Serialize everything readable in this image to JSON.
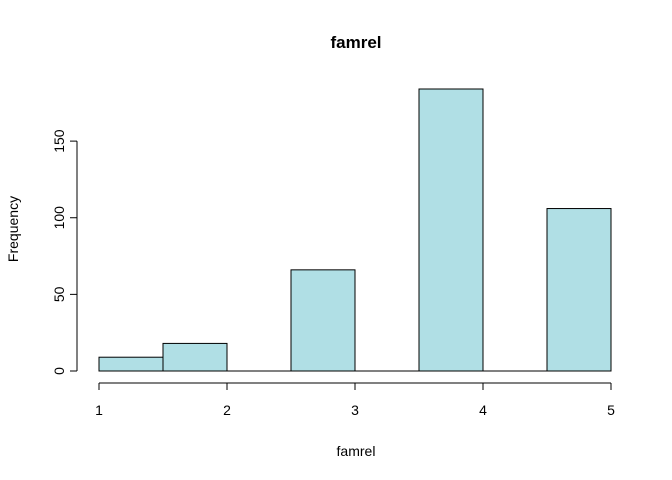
{
  "chart_data": {
    "type": "bar",
    "title": "famrel",
    "xlabel": "famrel",
    "ylabel": "Frequency",
    "bins": [
      {
        "from": 1.0,
        "to": 1.5,
        "value": 9
      },
      {
        "from": 1.5,
        "to": 2.0,
        "value": 18
      },
      {
        "from": 2.0,
        "to": 2.5,
        "value": 0
      },
      {
        "from": 2.5,
        "to": 3.0,
        "value": 66
      },
      {
        "from": 3.0,
        "to": 3.5,
        "value": 0
      },
      {
        "from": 3.5,
        "to": 4.0,
        "value": 184
      },
      {
        "from": 4.0,
        "to": 4.5,
        "value": 0
      },
      {
        "from": 4.5,
        "to": 5.0,
        "value": 106
      }
    ],
    "x_ticks": [
      "1",
      "2",
      "3",
      "4",
      "5"
    ],
    "y_ticks": [
      "0",
      "50",
      "100",
      "150"
    ],
    "xlim": [
      1,
      5
    ],
    "ylim": [
      0,
      184
    ],
    "bar_color": "#b0dfe5",
    "grid": false
  }
}
